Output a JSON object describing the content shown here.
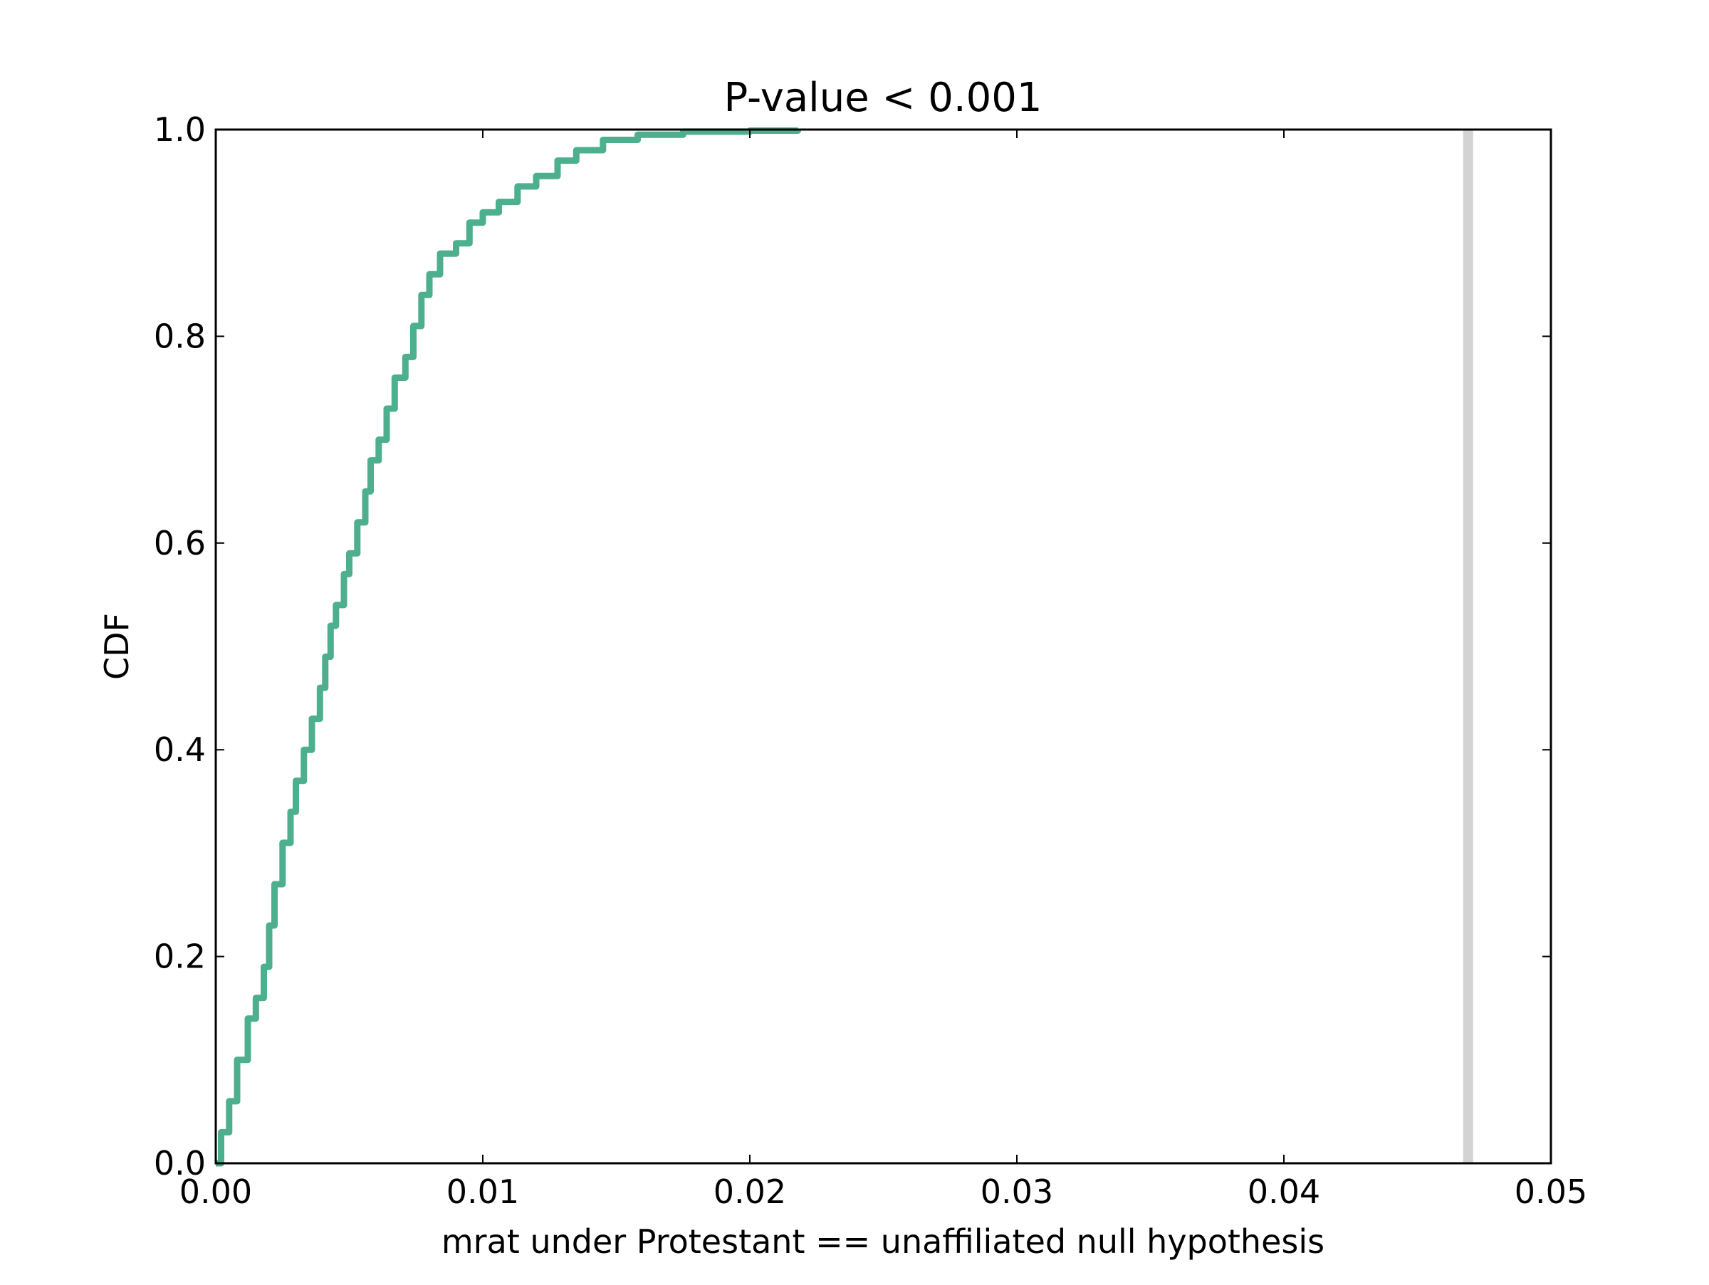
{
  "chart_data": {
    "type": "line",
    "title": "P-value < 0.001",
    "xlabel": "mrat under Protestant == unaffiliated null hypothesis",
    "ylabel": "CDF",
    "xlim": [
      0.0,
      0.05
    ],
    "ylim": [
      0.0,
      1.0
    ],
    "x_ticks": [
      "0.00",
      "0.01",
      "0.02",
      "0.03",
      "0.04",
      "0.05"
    ],
    "y_ticks": [
      "0.0",
      "0.2",
      "0.4",
      "0.6",
      "0.8",
      "1.0"
    ],
    "grid": false,
    "series": [
      {
        "color": "#4daf8e",
        "style": "step-cdf",
        "points": [
          [
            0.0,
            0.0
          ],
          [
            0.0002,
            0.03
          ],
          [
            0.0005,
            0.06
          ],
          [
            0.0008,
            0.1
          ],
          [
            0.0012,
            0.14
          ],
          [
            0.0015,
            0.16
          ],
          [
            0.0018,
            0.19
          ],
          [
            0.002,
            0.23
          ],
          [
            0.0022,
            0.27
          ],
          [
            0.0025,
            0.31
          ],
          [
            0.0028,
            0.34
          ],
          [
            0.003,
            0.37
          ],
          [
            0.0033,
            0.4
          ],
          [
            0.0036,
            0.43
          ],
          [
            0.0039,
            0.46
          ],
          [
            0.0041,
            0.49
          ],
          [
            0.0043,
            0.52
          ],
          [
            0.0045,
            0.54
          ],
          [
            0.0048,
            0.57
          ],
          [
            0.005,
            0.59
          ],
          [
            0.0053,
            0.62
          ],
          [
            0.0056,
            0.65
          ],
          [
            0.0058,
            0.68
          ],
          [
            0.0061,
            0.7
          ],
          [
            0.0064,
            0.73
          ],
          [
            0.0067,
            0.76
          ],
          [
            0.0071,
            0.78
          ],
          [
            0.0074,
            0.81
          ],
          [
            0.0077,
            0.84
          ],
          [
            0.008,
            0.86
          ],
          [
            0.0084,
            0.88
          ],
          [
            0.009,
            0.89
          ],
          [
            0.0095,
            0.91
          ],
          [
            0.01,
            0.92
          ],
          [
            0.0106,
            0.93
          ],
          [
            0.0113,
            0.945
          ],
          [
            0.012,
            0.955
          ],
          [
            0.0128,
            0.97
          ],
          [
            0.0135,
            0.98
          ],
          [
            0.0145,
            0.99
          ],
          [
            0.0158,
            0.995
          ],
          [
            0.0175,
            0.998
          ],
          [
            0.02,
            0.999
          ],
          [
            0.0218,
            1.0
          ]
        ]
      }
    ],
    "reference_line": {
      "x": 0.0469,
      "color": "#d3d3d3"
    }
  }
}
